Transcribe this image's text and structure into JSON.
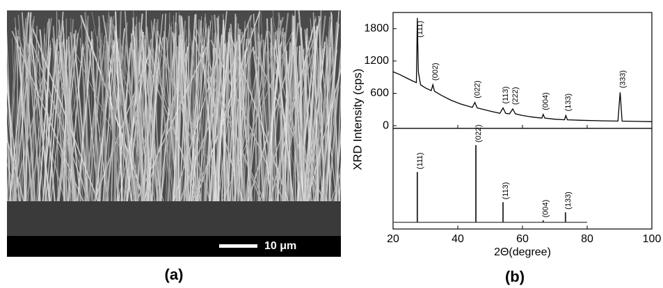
{
  "panel_a": {
    "scale_bar": "10 μm",
    "caption": "(a)"
  },
  "panel_b_caption": "(b)",
  "chart_data": [
    {
      "type": "line",
      "ylabel": "XRD Intensity (cps)",
      "color": "#000000",
      "xlim": [
        20,
        100
      ],
      "xticks": [
        20,
        40,
        60,
        80,
        100
      ],
      "ylim": [
        -50,
        2100
      ],
      "yticks": [
        0,
        600,
        1200,
        1800
      ],
      "x": [
        20,
        22,
        24,
        26,
        27.2,
        27.5,
        27.8,
        28.5,
        30,
        31.8,
        32.3,
        32.8,
        35,
        38,
        41,
        44.5,
        45.3,
        46,
        50,
        53,
        54,
        54.8,
        56,
        57,
        57.8,
        60,
        63,
        66,
        66.4,
        66.9,
        70,
        73,
        73.4,
        73.9,
        78,
        85,
        89.5,
        90.2,
        90.8,
        95,
        100
      ],
      "values": [
        1000,
        950,
        890,
        830,
        800,
        2000,
        1000,
        760,
        700,
        650,
        760,
        640,
        560,
        470,
        400,
        340,
        430,
        330,
        270,
        230,
        330,
        230,
        220,
        310,
        220,
        190,
        160,
        140,
        210,
        140,
        120,
        110,
        190,
        110,
        100,
        90,
        85,
        620,
        85,
        80,
        75
      ],
      "peak_x": [
        27.5,
        32.3,
        45.3,
        54,
        57,
        66.4,
        73.4,
        90.2
      ],
      "peak_labels": [
        "(111)",
        "(002)",
        "(022)",
        "(113)",
        "(222)",
        "(004)",
        "(133)",
        "(333)"
      ]
    },
    {
      "type": "stick",
      "xlabel": "2Θ(degree)",
      "color": "#000000",
      "xlim": [
        20,
        100
      ],
      "xticks": [
        20,
        40,
        60,
        80,
        100
      ],
      "ylim": [
        -10,
        140
      ],
      "pattern_xlim": [
        20,
        80
      ],
      "x": [
        27.5,
        45.6,
        54,
        66.4,
        73.3
      ],
      "values": [
        75,
        115,
        30,
        3,
        15
      ],
      "peak_labels": [
        "(111)",
        "(022)",
        "(113)",
        "(004)",
        "(133)"
      ]
    }
  ]
}
